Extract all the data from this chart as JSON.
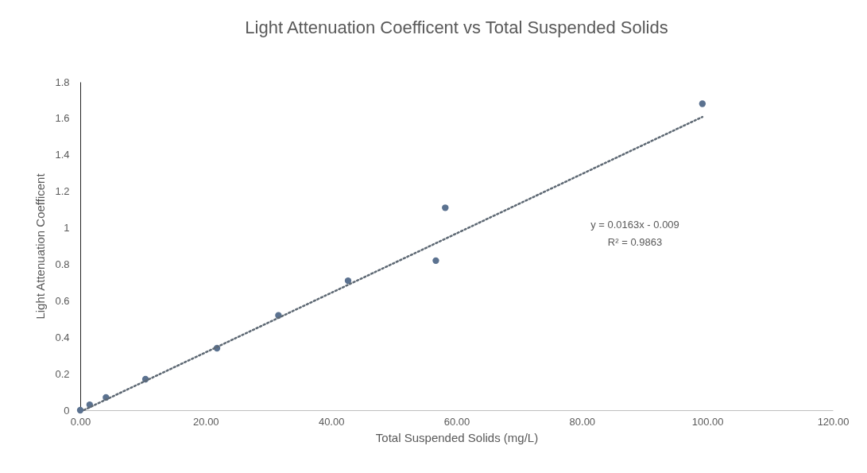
{
  "chart_data": {
    "type": "scatter",
    "title": "Light Attenuation Coefficent vs Total Suspended Solids",
    "xlabel": "Total Suspended Solids (mg/L)",
    "ylabel": "Light Attenuation Coefficent",
    "series": [
      {
        "color": "#5b7290",
        "x": [
          0,
          1.5,
          4.1,
          10.4,
          21.8,
          31.6,
          42.7,
          56.7,
          58.2,
          99.2
        ],
        "values": [
          0,
          0.03,
          0.07,
          0.17,
          0.34,
          0.52,
          0.71,
          0.82,
          1.11,
          1.68
        ],
        "marker": "circle"
      },
      {
        "type": "line",
        "color": "#5d6873",
        "x": [
          0.6,
          99.2
        ],
        "values": [
          0.001,
          1.608
        ],
        "line_style": "dotted",
        "marker": "none"
      }
    ],
    "xlim": [
      0,
      120
    ],
    "xticks": [
      {
        "value": 0,
        "label": "0.00"
      },
      {
        "value": 20,
        "label": "20.00"
      },
      {
        "value": 40,
        "label": "40.00"
      },
      {
        "value": 60,
        "label": "60.00"
      },
      {
        "value": 80,
        "label": "80.00"
      },
      {
        "value": 100,
        "label": "100.00"
      },
      {
        "value": 120,
        "label": "120.00"
      }
    ],
    "ylim": [
      0,
      1.8
    ],
    "yticks": [
      0,
      0.2,
      0.4,
      0.6,
      0.8,
      1,
      1.2,
      1.4,
      1.6,
      1.8
    ],
    "annotations": [
      "y = 0.0163x  - 0.009",
      "R² = 0.9863"
    ],
    "grid": false
  }
}
